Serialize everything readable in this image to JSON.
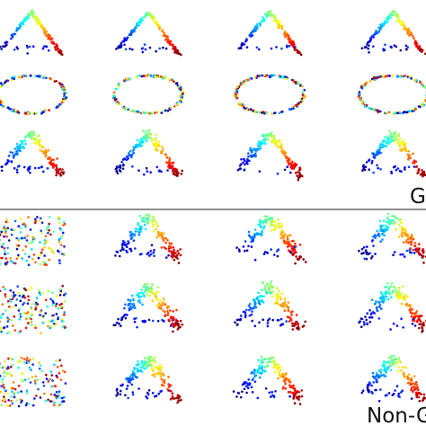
{
  "labels": {
    "top": "G",
    "bottom": "Non-G"
  }
}
